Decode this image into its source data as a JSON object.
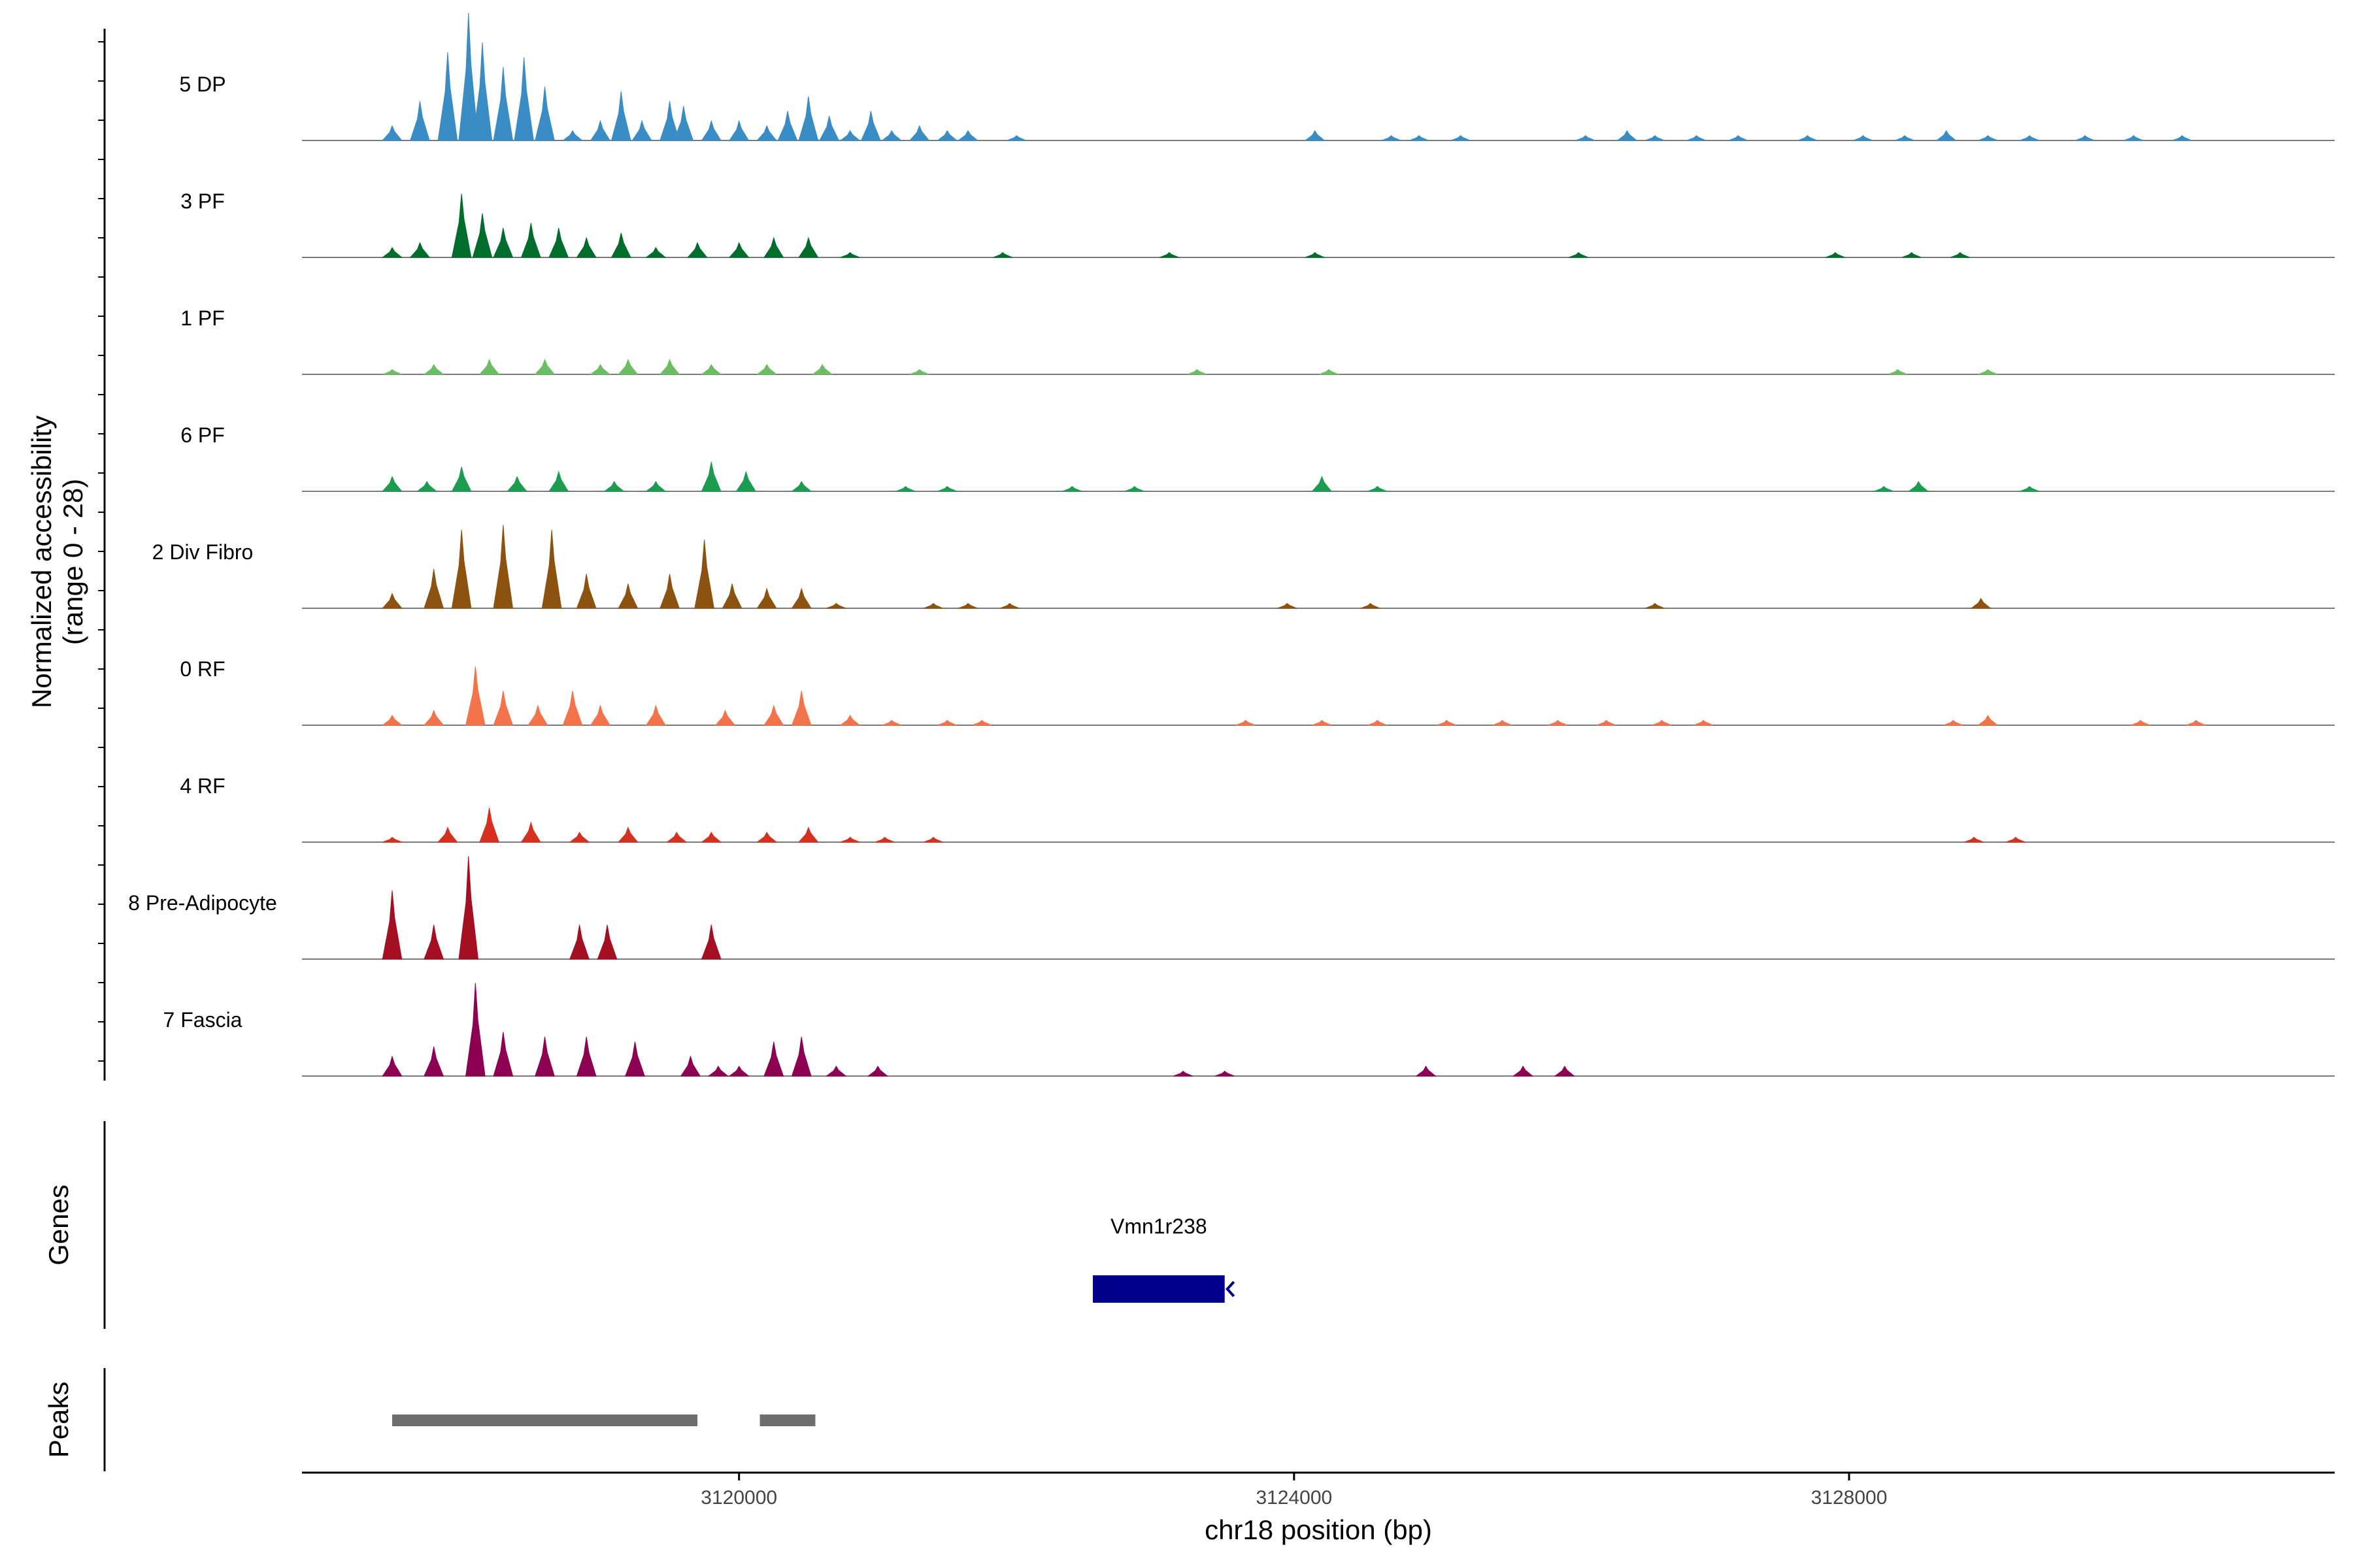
{
  "chart_data": {
    "type": "area",
    "title": "",
    "xlabel": "chr18 position (bp)",
    "ylabel_line1": "Normalized accessibility",
    "ylabel_line2": "(range 0 - 28)",
    "ylim": [
      0,
      28
    ],
    "xlim": [
      3116850,
      3131500
    ],
    "xticks": [
      3120000,
      3124000,
      3128000
    ],
    "xtick_labels": [
      "3120000",
      "3124000",
      "3128000"
    ],
    "series": [
      {
        "name": "5 DP",
        "color": "#3A8CC4",
        "points": [
          [
            3117500,
            3
          ],
          [
            3117700,
            8
          ],
          [
            3117900,
            18
          ],
          [
            3118050,
            26
          ],
          [
            3118150,
            20
          ],
          [
            3118300,
            15
          ],
          [
            3118450,
            17
          ],
          [
            3118600,
            11
          ],
          [
            3118800,
            2
          ],
          [
            3119000,
            4
          ],
          [
            3119150,
            10
          ],
          [
            3119300,
            4
          ],
          [
            3119500,
            8
          ],
          [
            3119600,
            7
          ],
          [
            3119800,
            4
          ],
          [
            3120000,
            4
          ],
          [
            3120200,
            3
          ],
          [
            3120350,
            6
          ],
          [
            3120500,
            9
          ],
          [
            3120650,
            5
          ],
          [
            3120800,
            2
          ],
          [
            3120950,
            6
          ],
          [
            3121100,
            2
          ],
          [
            3121300,
            3
          ],
          [
            3121500,
            2
          ],
          [
            3121650,
            2
          ],
          [
            3122000,
            1
          ],
          [
            3124150,
            2
          ],
          [
            3124700,
            1
          ],
          [
            3124900,
            1
          ],
          [
            3125200,
            1
          ],
          [
            3126100,
            1
          ],
          [
            3126400,
            2
          ],
          [
            3126600,
            1
          ],
          [
            3126900,
            1
          ],
          [
            3127200,
            1
          ],
          [
            3127700,
            1
          ],
          [
            3128100,
            1
          ],
          [
            3128400,
            1
          ],
          [
            3128700,
            2
          ],
          [
            3129000,
            1
          ],
          [
            3129300,
            1
          ],
          [
            3129700,
            1
          ],
          [
            3130050,
            1
          ],
          [
            3130400,
            1
          ]
        ]
      },
      {
        "name": "3 PF",
        "color": "#006D2C",
        "points": [
          [
            3117500,
            2
          ],
          [
            3117700,
            3
          ],
          [
            3118000,
            13
          ],
          [
            3118150,
            9
          ],
          [
            3118300,
            6
          ],
          [
            3118500,
            7
          ],
          [
            3118700,
            6
          ],
          [
            3118900,
            4
          ],
          [
            3119150,
            5
          ],
          [
            3119400,
            2
          ],
          [
            3119700,
            3
          ],
          [
            3120000,
            3
          ],
          [
            3120250,
            4
          ],
          [
            3120500,
            4
          ],
          [
            3120800,
            1
          ],
          [
            3121900,
            1
          ],
          [
            3123100,
            1
          ],
          [
            3124150,
            1
          ],
          [
            3126050,
            1
          ],
          [
            3127900,
            1
          ],
          [
            3128450,
            1
          ],
          [
            3128800,
            1
          ]
        ]
      },
      {
        "name": "1 PF",
        "color": "#6BBF62",
        "points": [
          [
            3117500,
            1
          ],
          [
            3117800,
            2
          ],
          [
            3118200,
            3
          ],
          [
            3118600,
            3
          ],
          [
            3119000,
            2
          ],
          [
            3119200,
            3
          ],
          [
            3119500,
            3
          ],
          [
            3119800,
            2
          ],
          [
            3120200,
            2
          ],
          [
            3120600,
            2
          ],
          [
            3121300,
            1
          ],
          [
            3123300,
            1
          ],
          [
            3124250,
            1
          ],
          [
            3128350,
            1
          ],
          [
            3129000,
            1
          ]
        ]
      },
      {
        "name": "6 PF",
        "color": "#1C9C50",
        "points": [
          [
            3117500,
            3
          ],
          [
            3117750,
            2
          ],
          [
            3118000,
            5
          ],
          [
            3118400,
            3
          ],
          [
            3118700,
            4
          ],
          [
            3119100,
            2
          ],
          [
            3119400,
            2
          ],
          [
            3119800,
            6
          ],
          [
            3120050,
            4
          ],
          [
            3120450,
            2
          ],
          [
            3121200,
            1
          ],
          [
            3121500,
            1
          ],
          [
            3122400,
            1
          ],
          [
            3122850,
            1
          ],
          [
            3124200,
            3
          ],
          [
            3124600,
            1
          ],
          [
            3128250,
            1
          ],
          [
            3128500,
            2
          ],
          [
            3129300,
            1
          ]
        ]
      },
      {
        "name": "2 Div Fibro",
        "color": "#8B5210",
        "points": [
          [
            3117500,
            3
          ],
          [
            3117800,
            8
          ],
          [
            3118000,
            16
          ],
          [
            3118300,
            17
          ],
          [
            3118650,
            16
          ],
          [
            3118900,
            7
          ],
          [
            3119200,
            5
          ],
          [
            3119500,
            7
          ],
          [
            3119750,
            14
          ],
          [
            3119950,
            5
          ],
          [
            3120200,
            4
          ],
          [
            3120450,
            4
          ],
          [
            3120700,
            1
          ],
          [
            3121400,
            1
          ],
          [
            3121650,
            1
          ],
          [
            3121950,
            1
          ],
          [
            3123950,
            1
          ],
          [
            3124550,
            1
          ],
          [
            3126600,
            1
          ],
          [
            3128950,
            2
          ]
        ]
      },
      {
        "name": "0 RF",
        "color": "#F4734A",
        "points": [
          [
            3117500,
            2
          ],
          [
            3117800,
            3
          ],
          [
            3118100,
            12
          ],
          [
            3118300,
            7
          ],
          [
            3118550,
            4
          ],
          [
            3118800,
            7
          ],
          [
            3119000,
            4
          ],
          [
            3119400,
            4
          ],
          [
            3119900,
            3
          ],
          [
            3120250,
            4
          ],
          [
            3120450,
            7
          ],
          [
            3120800,
            2
          ],
          [
            3121100,
            1
          ],
          [
            3121500,
            1
          ],
          [
            3121750,
            1
          ],
          [
            3123650,
            1
          ],
          [
            3124200,
            1
          ],
          [
            3124600,
            1
          ],
          [
            3125100,
            1
          ],
          [
            3125500,
            1
          ],
          [
            3125900,
            1
          ],
          [
            3126250,
            1
          ],
          [
            3126650,
            1
          ],
          [
            3126950,
            1
          ],
          [
            3128750,
            1
          ],
          [
            3129000,
            2
          ],
          [
            3130100,
            1
          ],
          [
            3130500,
            1
          ]
        ]
      },
      {
        "name": "4 RF",
        "color": "#D7301F",
        "points": [
          [
            3117500,
            1
          ],
          [
            3117900,
            3
          ],
          [
            3118200,
            7
          ],
          [
            3118500,
            4
          ],
          [
            3118850,
            2
          ],
          [
            3119200,
            3
          ],
          [
            3119550,
            2
          ],
          [
            3119800,
            2
          ],
          [
            3120200,
            2
          ],
          [
            3120500,
            3
          ],
          [
            3120800,
            1
          ],
          [
            3121050,
            1
          ],
          [
            3121400,
            1
          ],
          [
            3128900,
            1
          ],
          [
            3129200,
            1
          ]
        ]
      },
      {
        "name": "8 Pre-Adipocyte",
        "color": "#A50F22",
        "points": [
          [
            3117500,
            14
          ],
          [
            3117800,
            7
          ],
          [
            3118050,
            21
          ],
          [
            3118850,
            7
          ],
          [
            3119050,
            7
          ],
          [
            3119800,
            7
          ]
        ]
      },
      {
        "name": "7 Fascia",
        "color": "#8E0152",
        "points": [
          [
            3117500,
            4
          ],
          [
            3117800,
            6
          ],
          [
            3118100,
            19
          ],
          [
            3118300,
            9
          ],
          [
            3118600,
            8
          ],
          [
            3118900,
            8
          ],
          [
            3119250,
            7
          ],
          [
            3119650,
            4
          ],
          [
            3119850,
            2
          ],
          [
            3120000,
            2
          ],
          [
            3120250,
            7
          ],
          [
            3120450,
            8
          ],
          [
            3120700,
            2
          ],
          [
            3121000,
            2
          ],
          [
            3123200,
            1
          ],
          [
            3123500,
            1
          ],
          [
            3124950,
            2
          ],
          [
            3125650,
            2
          ],
          [
            3125950,
            2
          ]
        ]
      }
    ],
    "genes": {
      "title": "Genes",
      "items": [
        {
          "name": "Vmn1r238",
          "start": 3122550,
          "end": 3123500,
          "strand": "-",
          "color": "#00008B"
        }
      ]
    },
    "peaks": {
      "title": "Peaks",
      "items": [
        [
          3117500,
          3119700
        ],
        [
          3120150,
          3120550
        ]
      ],
      "color": "#6E6E6E"
    }
  }
}
